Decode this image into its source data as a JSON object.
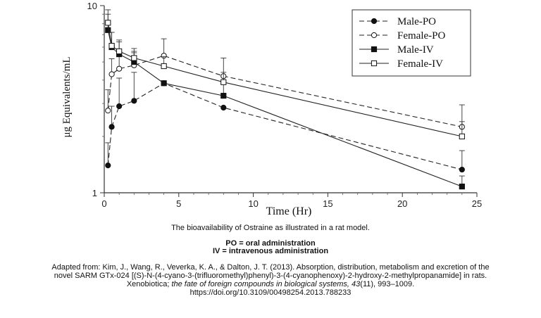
{
  "chart_data": {
    "type": "line",
    "title": "",
    "xlabel": "Time (Hr)",
    "ylabel": "μg Equivalents/mL",
    "xlim": [
      0,
      25
    ],
    "ylim": [
      1,
      10
    ],
    "yscale": "log",
    "x_ticks": [
      0,
      5,
      10,
      15,
      20,
      25
    ],
    "x_tick_labels": [
      "0",
      "5",
      "10",
      "15",
      "20",
      "25"
    ],
    "y_ticks": [
      1,
      10
    ],
    "y_tick_labels": [
      "1",
      "10"
    ],
    "legend_position": "top-right",
    "series": [
      {
        "name": "Male-PO",
        "line": "dashed",
        "marker": "filled-circle",
        "x": [
          0.25,
          0.5,
          1,
          2,
          4,
          8,
          24
        ],
        "y": [
          1.4,
          2.25,
          2.9,
          3.1,
          3.85,
          2.85,
          1.33
        ],
        "err_plus": [
          0.45,
          0.65,
          1.2,
          1.3,
          0,
          0,
          0.35
        ]
      },
      {
        "name": "Female-PO",
        "line": "dashed",
        "marker": "open-circle",
        "x": [
          0.25,
          0.5,
          1,
          2,
          4,
          8,
          24
        ],
        "y": [
          2.75,
          4.3,
          4.6,
          4.8,
          5.4,
          4.2,
          2.25
        ],
        "err_plus": [
          0.8,
          0.9,
          1.0,
          0.9,
          1.25,
          1.05,
          0.7
        ]
      },
      {
        "name": "Male-IV",
        "line": "solid",
        "marker": "filled-square",
        "x": [
          0.25,
          0.5,
          1,
          2,
          4,
          8,
          24
        ],
        "y": [
          7.4,
          6.0,
          5.5,
          5.0,
          3.85,
          3.3,
          1.08
        ],
        "err_plus": [
          1.6,
          1.2,
          0.9,
          0.6,
          0,
          0.55,
          0.15
        ]
      },
      {
        "name": "Female-IV",
        "line": "solid",
        "marker": "open-square",
        "x": [
          0.25,
          0.5,
          1,
          2,
          4,
          8,
          24
        ],
        "y": [
          8.1,
          6.1,
          5.7,
          5.25,
          4.75,
          3.9,
          2.0
        ],
        "err_plus": [
          1.4,
          1.1,
          0.85,
          0.65,
          0.6,
          0.5,
          0.4
        ]
      }
    ]
  },
  "caption": {
    "description": "The bioavailability of Ostraine as illustrated in a rat model.",
    "po_definition": "PO = oral administration",
    "iv_definition": "IV = intravenous administration"
  },
  "citation": {
    "line1": "Adapted from: Kim, J., Wang, R., Veverka, K. A., & Dalton, J. T. (2013). Absorption, distribution, metabolism and excretion of the",
    "line2": "novel SARM GTx-024 [(S)-N-(4-cyano-3-(trifluoromethyl)phenyl)-3-(4-cyanophenoxy)-2-hydroxy-2-methylpropanamide] in rats.",
    "line3_prefix": "Xenobiotica; ",
    "line3_italic": "the fate of foreign compounds in biological systems, 43",
    "line3_suffix": "(11), 993–1009.",
    "doi": "https://doi.org/10.3109/00498254.2013.788233"
  }
}
